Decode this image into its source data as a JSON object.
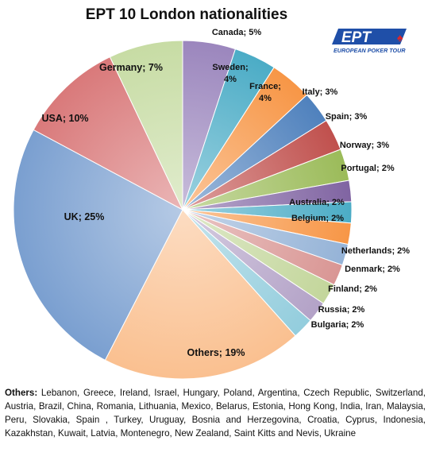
{
  "logo": {
    "text": "EPT",
    "tagline": "EUROPEAN POKER TOUR"
  },
  "others_note": {
    "label": "Others:",
    "text": "Lebanon, Greece, Ireland, Israel, Hungary, Poland, Argentina, Czech Republic, Switzerland, Austria, Brazil, China, Romania, Lithuania, Mexico, Belarus, Estonia, Hong Kong, India, Iran, Malaysia, Peru, Slovakia, Spain , Turkey, Uruguay, Bosnia and Herzegovina, Croatia, Cyprus, Indonesia, Kazakhstan, Kuwait, Latvia, Montenegro, New Zealand, Saint Kitts and Nevis, Ukraine"
  },
  "chart_data": {
    "type": "pie",
    "title": "EPT 10 London nationalities",
    "start_angle_deg": 0,
    "direction": "clockwise",
    "slices": [
      {
        "label": "Canada; 5%",
        "value": 5,
        "color": "#9b86bd"
      },
      {
        "label": "Sweden; 4%",
        "value": 4,
        "color": "#4bacc6"
      },
      {
        "label": "France; 4%",
        "value": 4,
        "color": "#f79646"
      },
      {
        "label": "Italy; 3%",
        "value": 3,
        "color": "#4f81bd"
      },
      {
        "label": "Spain; 3%",
        "value": 3,
        "color": "#c0504d"
      },
      {
        "label": "Norway; 3%",
        "value": 3,
        "color": "#9bbb59"
      },
      {
        "label": "Portugal; 2%",
        "value": 2,
        "color": "#8064a2"
      },
      {
        "label": "Australia; 2%",
        "value": 2,
        "color": "#4bacc6"
      },
      {
        "label": "Belgium; 2%",
        "value": 2,
        "color": "#f79646"
      },
      {
        "label": "Netherlands; 2%",
        "value": 2,
        "color": "#95b3d7"
      },
      {
        "label": "Denmark; 2%",
        "value": 2,
        "color": "#d99694"
      },
      {
        "label": "Finland; 2%",
        "value": 2,
        "color": "#c3d69b"
      },
      {
        "label": "Russia; 2%",
        "value": 2,
        "color": "#b3a2c7"
      },
      {
        "label": "Bulgaria; 2%",
        "value": 2,
        "color": "#93cddd"
      },
      {
        "label": "Others; 19%",
        "value": 19,
        "color": "#fac090"
      },
      {
        "label": "UK; 25%",
        "value": 25,
        "color": "#7a9fd0"
      },
      {
        "label": "USA; 10%",
        "value": 10,
        "color": "#d9797a"
      },
      {
        "label": "Germany; 7%",
        "value": 7,
        "color": "#c7dca4"
      }
    ]
  }
}
